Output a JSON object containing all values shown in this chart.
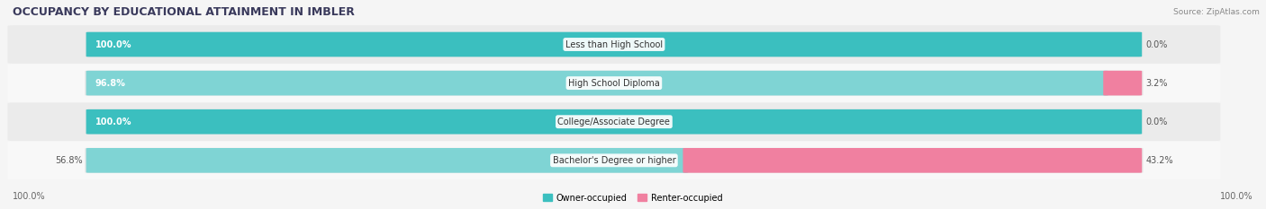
{
  "title": "OCCUPANCY BY EDUCATIONAL ATTAINMENT IN IMBLER",
  "source": "Source: ZipAtlas.com",
  "categories": [
    "Less than High School",
    "High School Diploma",
    "College/Associate Degree",
    "Bachelor's Degree or higher"
  ],
  "owner_pct": [
    100.0,
    96.8,
    100.0,
    56.8
  ],
  "renter_pct": [
    0.0,
    3.2,
    0.0,
    43.2
  ],
  "owner_color_full": "#3bbfbf",
  "owner_color_partial": "#7fd4d4",
  "renter_color": "#f080a0",
  "renter_color_light": "#f5b8c8",
  "bg_color": "#f5f5f5",
  "row_bg_even": "#ebebeb",
  "row_bg_odd": "#f8f8f8",
  "bar_bg": "#e0e0e0",
  "figsize": [
    14.06,
    2.33
  ],
  "dpi": 100
}
